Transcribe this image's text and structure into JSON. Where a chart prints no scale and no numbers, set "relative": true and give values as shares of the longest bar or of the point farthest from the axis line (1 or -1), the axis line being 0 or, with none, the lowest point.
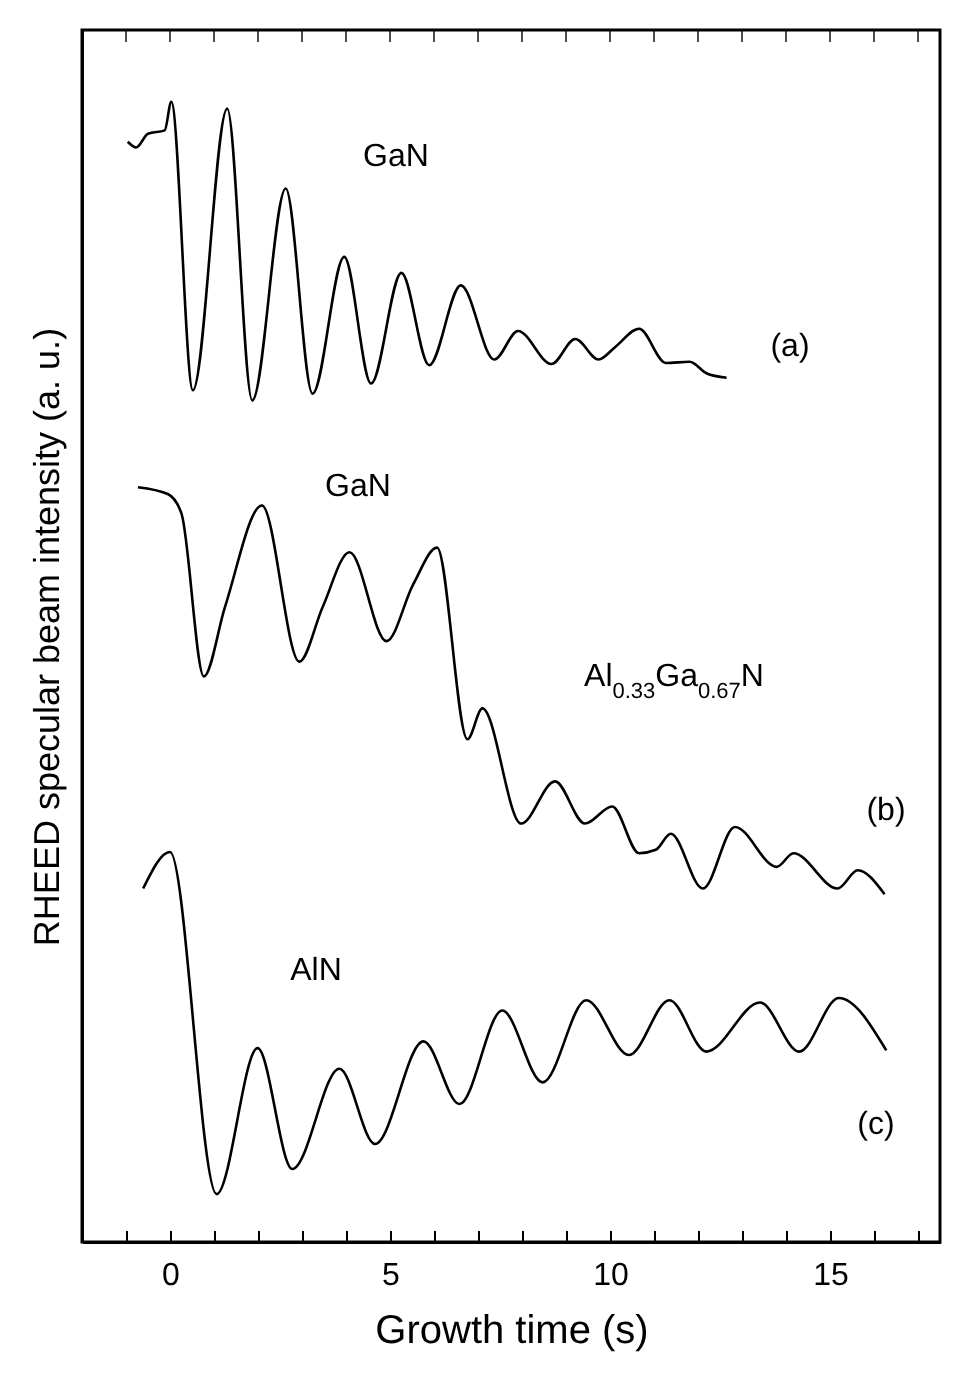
{
  "chart_data": {
    "type": "line",
    "xlabel": "Growth time (s)",
    "ylabel": "RHEED specular beam intensity (a. u.)",
    "relative": true,
    "xlim": [
      -2,
      17.5
    ],
    "xticks": [
      {
        "value": -1,
        "label": null
      },
      0,
      {
        "value": 1,
        "label": null
      },
      {
        "value": 2,
        "label": null
      },
      {
        "value": 3,
        "label": null
      },
      {
        "value": 4,
        "label": null
      },
      5,
      {
        "value": 6,
        "label": null
      },
      {
        "value": 7,
        "label": null
      },
      {
        "value": 8,
        "label": null
      },
      {
        "value": 9,
        "label": null
      },
      10,
      {
        "value": 11,
        "label": null
      },
      {
        "value": 12,
        "label": null
      },
      {
        "value": 13,
        "label": null
      },
      {
        "value": 14,
        "label": null
      },
      15,
      {
        "value": 16,
        "label": null
      },
      {
        "value": 17,
        "label": null
      }
    ],
    "series": [
      {
        "color": "#000000",
        "x": [
          -0.96,
          -0.77,
          -0.5,
          -0.12,
          0.03,
          0.52,
          1.3,
          1.87,
          2.63,
          3.24,
          3.96,
          4.57,
          5.26,
          5.89,
          6.61,
          7.37,
          7.91,
          8.67,
          9.21,
          9.74,
          10.12,
          10.66,
          11.27,
          11.81,
          12.19,
          12.65
        ],
        "values": [
          0.965,
          0.96,
          0.972,
          0.975,
          1.0,
          0.747,
          0.994,
          0.738,
          0.924,
          0.744,
          0.864,
          0.753,
          0.85,
          0.769,
          0.839,
          0.774,
          0.799,
          0.77,
          0.792,
          0.774,
          0.785,
          0.801,
          0.771,
          0.772,
          0.762,
          0.758
        ]
      },
      {
        "color": "#000000",
        "x": [
          -0.73,
          -0.05,
          0.26,
          0.77,
          1.25,
          2.09,
          2.94,
          3.47,
          4.08,
          4.92,
          5.53,
          6.07,
          6.76,
          7.1,
          7.98,
          8.75,
          9.43,
          10.05,
          10.66,
          11.04,
          11.38,
          12.11,
          12.84,
          13.79,
          14.17,
          15.17,
          15.63,
          16.24
        ],
        "values": [
          0.662,
          0.656,
          0.639,
          0.496,
          0.557,
          0.646,
          0.509,
          0.557,
          0.605,
          0.527,
          0.577,
          0.609,
          0.441,
          0.468,
          0.367,
          0.404,
          0.367,
          0.382,
          0.341,
          0.344,
          0.358,
          0.31,
          0.364,
          0.329,
          0.341,
          0.31,
          0.326,
          0.305
        ]
      },
      {
        "color": "#000000",
        "x": [
          -0.61,
          0.0,
          1.06,
          1.99,
          2.78,
          3.85,
          4.66,
          5.76,
          6.58,
          7.55,
          8.47,
          9.46,
          10.43,
          11.35,
          12.19,
          13.41,
          14.3,
          15.2,
          16.28
        ],
        "values": [
          0.31,
          0.342,
          0.042,
          0.17,
          0.064,
          0.152,
          0.086,
          0.176,
          0.121,
          0.203,
          0.14,
          0.212,
          0.164,
          0.212,
          0.167,
          0.21,
          0.167,
          0.214,
          0.168
        ]
      }
    ],
    "annotations": [
      "GaN",
      "(a)",
      "GaN",
      "Al$_{0.33}$Ga$_{0.67}$N",
      "(b)",
      "AlN",
      "(c)"
    ]
  }
}
